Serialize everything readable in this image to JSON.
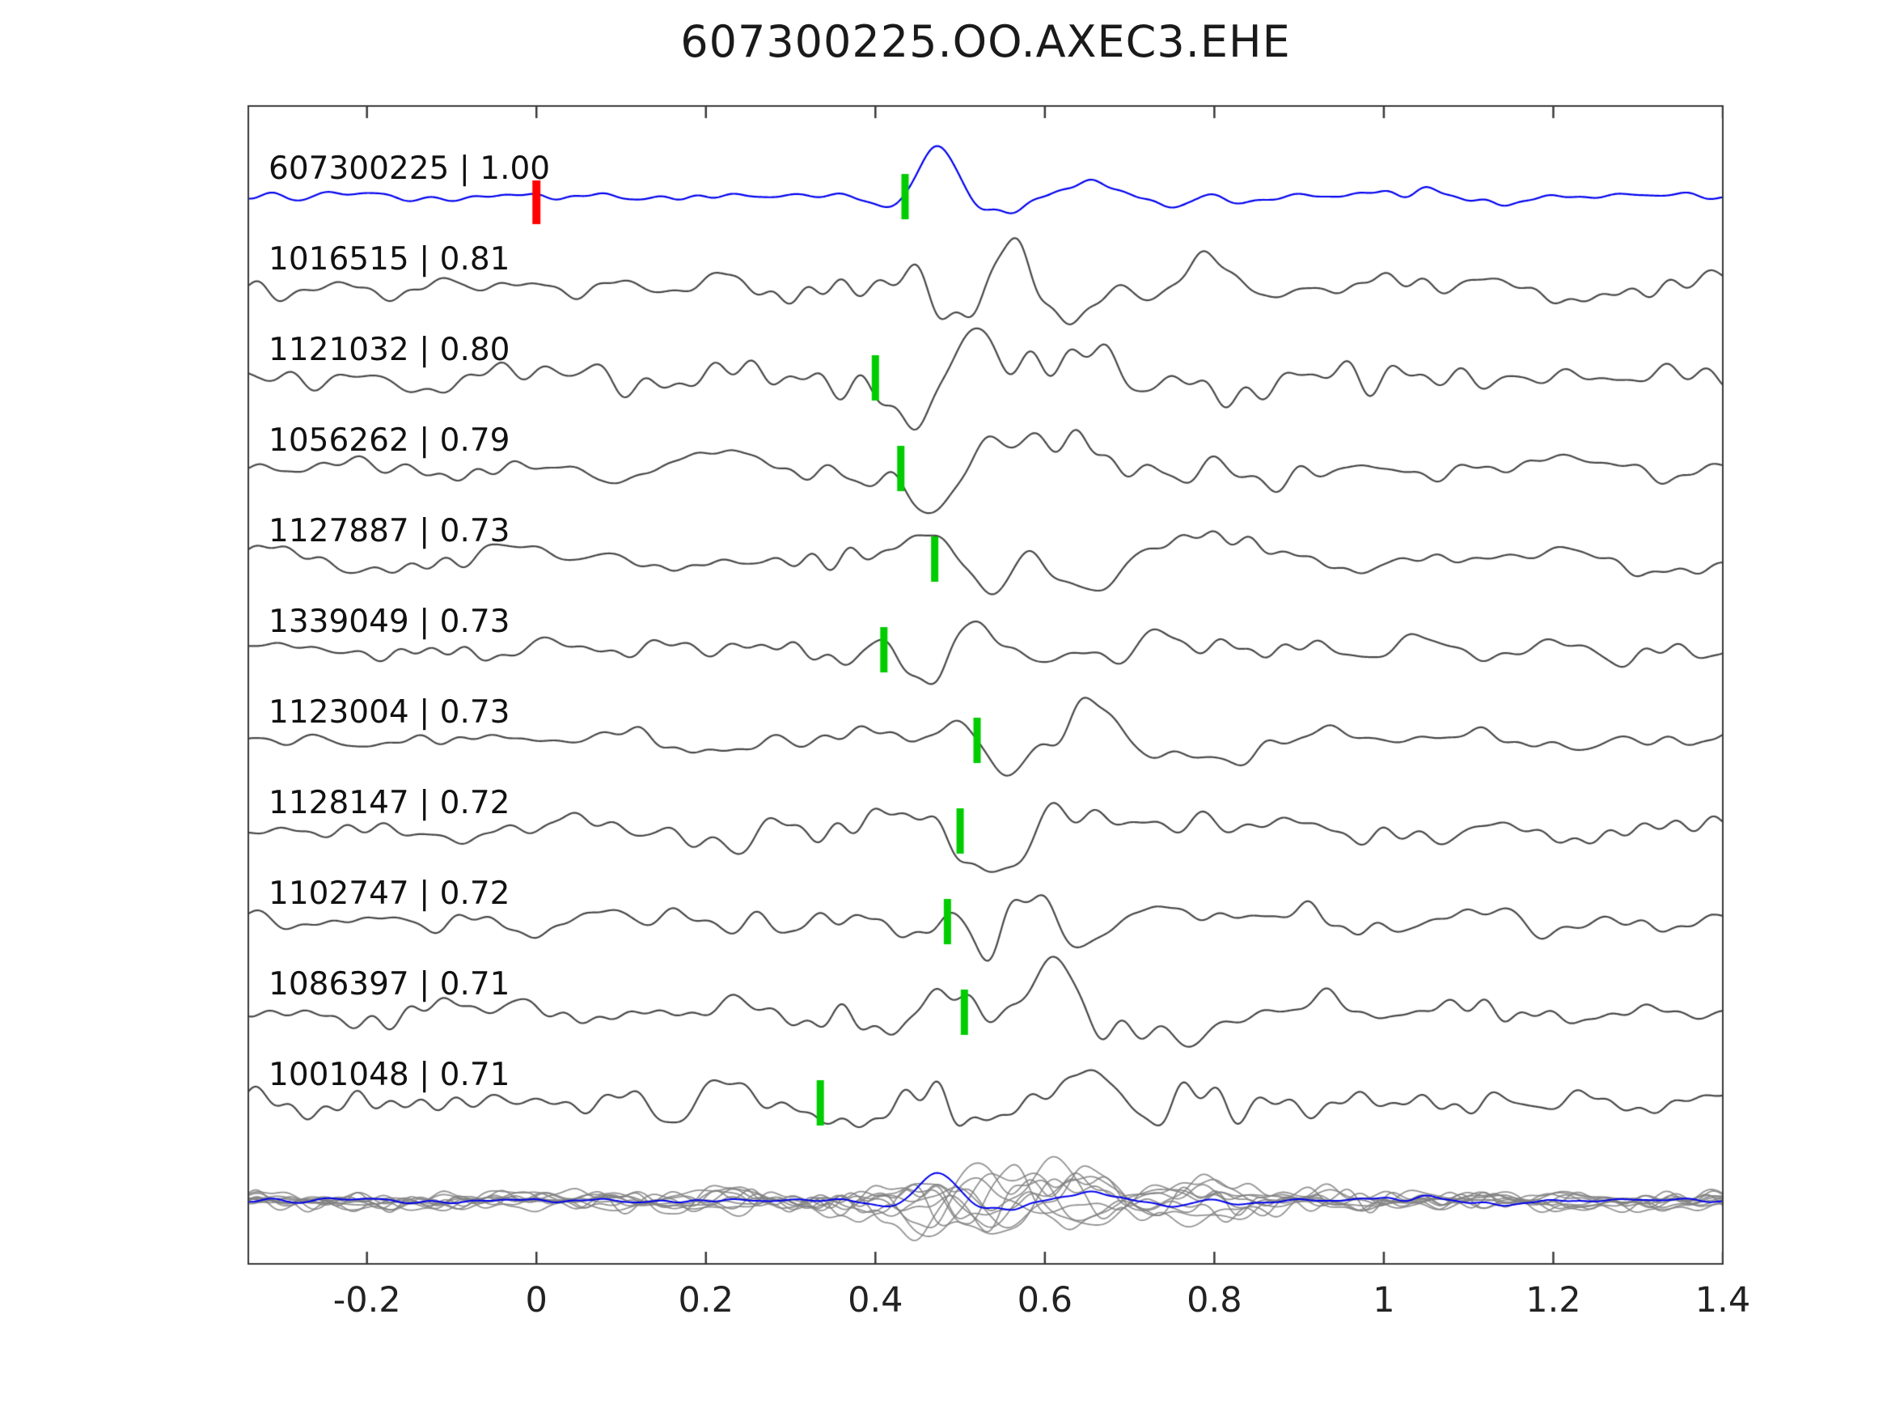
{
  "title": "607300225.OO.AXEC3.EHE",
  "chart_data": {
    "type": "line",
    "title": "607300225.OO.AXEC3.EHE",
    "xlabel": "",
    "ylabel": "",
    "xlim": [
      -0.34,
      1.4
    ],
    "xticks": [
      -0.2,
      0,
      0.2,
      0.4,
      0.6,
      0.8,
      1,
      1.2,
      1.4
    ],
    "xtick_labels": [
      "-0.2",
      "0",
      "0.2",
      "0.4",
      "0.6",
      "0.8",
      "1",
      "1.2",
      "1.4"
    ],
    "grid": false,
    "legend": null,
    "colors": {
      "template_trace": "#0000ee",
      "detection_trace": "#474747",
      "overlay_trace": "#8a8a8a",
      "pick_marker": "#00cc00",
      "reference_marker": "#ff0000",
      "axis": "#3a3a3a"
    },
    "description": "Template waveform (top, blue) compared with detected event waveforms; green ticks are picks, red tick is template reference time at 0; bottom row overlays all traces.",
    "traces": [
      {
        "id": "607300225",
        "correlation": "1.00",
        "label": "607300225 | 1.00",
        "role": "template",
        "pick_x": 0.435,
        "ref_x": 0.0
      },
      {
        "id": "1016515",
        "correlation": "0.81",
        "label": "1016515 | 0.81",
        "role": "detection",
        "pick_x": null
      },
      {
        "id": "1121032",
        "correlation": "0.80",
        "label": "1121032 | 0.80",
        "role": "detection",
        "pick_x": 0.4
      },
      {
        "id": "1056262",
        "correlation": "0.79",
        "label": "1056262 | 0.79",
        "role": "detection",
        "pick_x": 0.43
      },
      {
        "id": "1127887",
        "correlation": "0.73",
        "label": "1127887 | 0.73",
        "role": "detection",
        "pick_x": 0.47
      },
      {
        "id": "1339049",
        "correlation": "0.73",
        "label": "1339049 | 0.73",
        "role": "detection",
        "pick_x": 0.41
      },
      {
        "id": "1123004",
        "correlation": "0.73",
        "label": "1123004 | 0.73",
        "role": "detection",
        "pick_x": 0.52
      },
      {
        "id": "1128147",
        "correlation": "0.72",
        "label": "1128147 | 0.72",
        "role": "detection",
        "pick_x": 0.5
      },
      {
        "id": "1102747",
        "correlation": "0.72",
        "label": "1102747 | 0.72",
        "role": "detection",
        "pick_x": 0.485
      },
      {
        "id": "1086397",
        "correlation": "0.71",
        "label": "1086397 | 0.71",
        "role": "detection",
        "pick_x": 0.505
      },
      {
        "id": "1001048",
        "correlation": "0.71",
        "label": "1001048 | 0.71",
        "role": "detection",
        "pick_x": 0.335
      }
    ],
    "overlay_row": {
      "includes_template": true,
      "includes_all_detections": true
    }
  }
}
